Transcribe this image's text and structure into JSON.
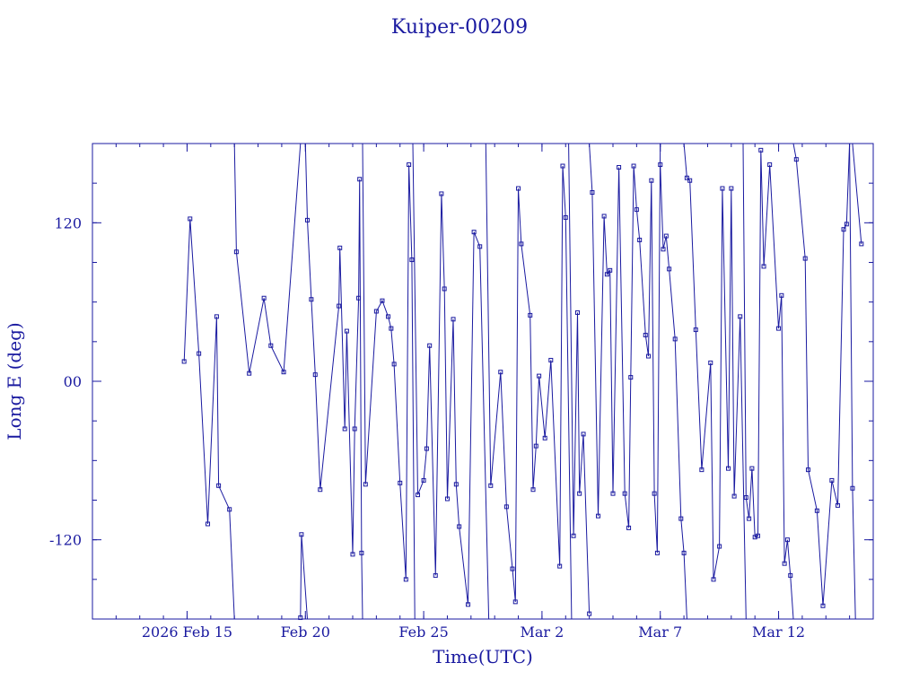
{
  "chart_data": {
    "type": "line",
    "title": "Kuiper-00209",
    "xlabel": "Time(UTC)",
    "ylabel": "Long E (deg)",
    "x_range": [
      "2026-02-11",
      "2026-03-16"
    ],
    "ylim": [
      -180,
      180
    ],
    "x_ticks": [
      {
        "date": "2026-02-15",
        "label": "2026 Feb 15"
      },
      {
        "date": "2026-02-20",
        "label": "Feb 20"
      },
      {
        "date": "2026-02-25",
        "label": "Feb 25"
      },
      {
        "date": "2026-03-02",
        "label": "Mar  2"
      },
      {
        "date": "2026-03-07",
        "label": "Mar  7"
      },
      {
        "date": "2026-03-12",
        "label": "Mar 12"
      }
    ],
    "y_ticks": [
      {
        "value": 120,
        "label": "120"
      },
      {
        "value": 0,
        "label": "00"
      },
      {
        "value": -120,
        "label": "-120"
      }
    ],
    "grid": false,
    "color": "#1a1aa0",
    "series": [
      {
        "points": [
          [
            "2026-02-14T21:00",
            15
          ],
          [
            "2026-02-15T03:00",
            123
          ],
          [
            "2026-02-15T12:00",
            21
          ],
          [
            "2026-02-15T21:00",
            -108
          ],
          [
            "2026-02-16T06:00",
            49
          ],
          [
            "2026-02-16T08:00",
            -79
          ],
          [
            "2026-02-16T19:00",
            -97
          ],
          [
            "2026-02-17T00:00",
            -180
          ],
          null,
          [
            "2026-02-17T00:00",
            180
          ],
          [
            "2026-02-17T02:00",
            98
          ],
          [
            "2026-02-17T15:00",
            6
          ],
          [
            "2026-02-18T06:00",
            63
          ],
          [
            "2026-02-18T13:00",
            27
          ],
          [
            "2026-02-19T02:00",
            7
          ],
          [
            "2026-02-19T19:00",
            180
          ],
          null,
          [
            "2026-02-19T19:00",
            -179
          ],
          [
            "2026-02-19T20:00",
            -116
          ],
          [
            "2026-02-20T02:00",
            -180
          ],
          null,
          [
            "2026-02-20T00:00",
            180
          ],
          [
            "2026-02-20T02:00",
            122
          ],
          [
            "2026-02-20T06:00",
            62
          ],
          [
            "2026-02-20T10:00",
            5
          ],
          [
            "2026-02-20T15:00",
            -82
          ],
          [
            "2026-02-21T10:00",
            57
          ],
          [
            "2026-02-21T11:00",
            101
          ],
          [
            "2026-02-21T16:00",
            -36
          ],
          [
            "2026-02-21T18:00",
            38
          ],
          [
            "2026-02-22T00:00",
            -131
          ],
          [
            "2026-02-22T02:00",
            -36
          ],
          [
            "2026-02-22T06:00",
            63
          ],
          [
            "2026-02-22T07:00",
            153
          ],
          [
            "2026-02-22T09:00",
            -130
          ],
          [
            "2026-02-22T10:00",
            -180
          ],
          null,
          [
            "2026-02-22T10:00",
            180
          ],
          [
            "2026-02-22T13:00",
            -78
          ],
          [
            "2026-02-23T00:00",
            53
          ],
          [
            "2026-02-23T06:00",
            61
          ],
          [
            "2026-02-23T12:00",
            49
          ],
          [
            "2026-02-23T15:00",
            40
          ],
          [
            "2026-02-23T18:00",
            13
          ],
          [
            "2026-02-24T00:00",
            -77
          ],
          [
            "2026-02-24T06:00",
            -150
          ],
          [
            "2026-02-24T09:00",
            164
          ],
          [
            "2026-02-24T12:00",
            92
          ],
          [
            "2026-02-24T15:00",
            -180
          ],
          null,
          [
            "2026-02-24T13:00",
            180
          ],
          [
            "2026-02-24T18:00",
            -86
          ],
          [
            "2026-02-25T00:00",
            -75
          ],
          [
            "2026-02-25T03:00",
            -51
          ],
          [
            "2026-02-25T06:00",
            27
          ],
          [
            "2026-02-25T12:00",
            -147
          ],
          [
            "2026-02-25T18:00",
            142
          ],
          [
            "2026-02-25T21:00",
            70
          ],
          [
            "2026-02-26T00:00",
            -89
          ],
          [
            "2026-02-26T06:00",
            47
          ],
          [
            "2026-02-26T09:00",
            -78
          ],
          [
            "2026-02-26T12:00",
            -110
          ],
          [
            "2026-02-26T21:00",
            -169
          ],
          [
            "2026-02-27T03:00",
            113
          ],
          [
            "2026-02-27T09:00",
            102
          ],
          [
            "2026-02-27T18:00",
            -180
          ],
          null,
          [
            "2026-02-27T15:00",
            180
          ],
          [
            "2026-02-27T20:00",
            -79
          ],
          [
            "2026-02-28T06:00",
            7
          ],
          [
            "2026-02-28T12:00",
            -95
          ],
          [
            "2026-02-28T18:00",
            -142
          ],
          [
            "2026-02-28T21:00",
            -167
          ],
          [
            "2026-03-01T00:00",
            146
          ],
          [
            "2026-03-01T03:00",
            104
          ],
          [
            "2026-03-01T12:00",
            50
          ],
          [
            "2026-03-01T15:00",
            -82
          ],
          [
            "2026-03-01T18:00",
            -49
          ],
          [
            "2026-03-01T21:00",
            4
          ],
          [
            "2026-03-02T03:00",
            -43
          ],
          [
            "2026-03-02T09:00",
            16
          ],
          [
            "2026-03-02T18:00",
            -140
          ],
          [
            "2026-03-02T21:00",
            163
          ],
          [
            "2026-03-03T00:00",
            124
          ],
          [
            "2026-03-03T06:00",
            -180
          ],
          null,
          [
            "2026-03-03T03:00",
            180
          ],
          [
            "2026-03-03T08:00",
            -117
          ],
          [
            "2026-03-03T12:00",
            52
          ],
          [
            "2026-03-03T14:00",
            -85
          ],
          [
            "2026-03-03T18:00",
            -40
          ],
          [
            "2026-03-04T00:00",
            -176
          ],
          null,
          [
            "2026-03-04T00:00",
            180
          ],
          [
            "2026-03-04T03:00",
            143
          ],
          [
            "2026-03-04T09:00",
            -102
          ],
          [
            "2026-03-04T15:00",
            125
          ],
          [
            "2026-03-04T18:00",
            81
          ],
          [
            "2026-03-04T21:00",
            84
          ],
          [
            "2026-03-05T00:00",
            -85
          ],
          [
            "2026-03-05T06:00",
            162
          ],
          [
            "2026-03-05T12:00",
            -85
          ],
          [
            "2026-03-05T16:00",
            -111
          ],
          [
            "2026-03-05T18:00",
            3
          ],
          [
            "2026-03-05T21:00",
            163
          ],
          [
            "2026-03-06T00:00",
            130
          ],
          [
            "2026-03-06T03:00",
            107
          ],
          [
            "2026-03-06T09:00",
            35
          ],
          [
            "2026-03-06T12:00",
            19
          ],
          [
            "2026-03-06T15:00",
            152
          ],
          [
            "2026-03-06T18:00",
            -85
          ],
          [
            "2026-03-06T21:00",
            -130
          ],
          [
            "2026-03-07T00:00",
            180
          ],
          null,
          [
            "2026-03-07T00:00",
            164
          ],
          [
            "2026-03-07T03:00",
            100
          ],
          [
            "2026-03-07T06:00",
            110
          ],
          [
            "2026-03-07T09:00",
            85
          ],
          [
            "2026-03-07T15:00",
            32
          ],
          [
            "2026-03-07T21:00",
            -104
          ],
          [
            "2026-03-08T00:00",
            -130
          ],
          [
            "2026-03-08T03:00",
            -180
          ],
          null,
          [
            "2026-03-08T00:00",
            180
          ],
          [
            "2026-03-08T03:00",
            154
          ],
          [
            "2026-03-08T06:00",
            152
          ],
          [
            "2026-03-08T12:00",
            39
          ],
          [
            "2026-03-08T18:00",
            -67
          ],
          [
            "2026-03-09T03:00",
            14
          ],
          [
            "2026-03-09T06:00",
            -150
          ],
          [
            "2026-03-09T12:00",
            -125
          ],
          [
            "2026-03-09T15:00",
            146
          ],
          [
            "2026-03-09T21:00",
            -66
          ],
          [
            "2026-03-10T00:00",
            146
          ],
          [
            "2026-03-10T03:00",
            -87
          ],
          [
            "2026-03-10T09:00",
            49
          ],
          [
            "2026-03-10T15:00",
            -180
          ],
          null,
          [
            "2026-03-10T12:00",
            180
          ],
          [
            "2026-03-10T15:00",
            -88
          ],
          [
            "2026-03-10T18:00",
            -104
          ],
          [
            "2026-03-10T21:00",
            -66
          ],
          [
            "2026-03-11T00:00",
            -118
          ],
          [
            "2026-03-11T03:00",
            -117
          ],
          [
            "2026-03-11T06:00",
            175
          ],
          [
            "2026-03-11T09:00",
            87
          ],
          [
            "2026-03-11T15:00",
            164
          ],
          [
            "2026-03-12T00:00",
            40
          ],
          [
            "2026-03-12T03:00",
            65
          ],
          [
            "2026-03-12T06:00",
            -138
          ],
          [
            "2026-03-12T09:00",
            -120
          ],
          [
            "2026-03-12T12:00",
            -147
          ],
          [
            "2026-03-12T15:00",
            -180
          ],
          null,
          [
            "2026-03-12T15:00",
            180
          ],
          [
            "2026-03-12T18:00",
            168
          ],
          [
            "2026-03-13T03:00",
            93
          ],
          [
            "2026-03-13T06:00",
            -67
          ],
          [
            "2026-03-13T15:00",
            -98
          ],
          [
            "2026-03-13T21:00",
            -170
          ],
          [
            "2026-03-14T06:00",
            -75
          ],
          [
            "2026-03-14T12:00",
            -94
          ],
          [
            "2026-03-14T18:00",
            115
          ],
          [
            "2026-03-14T21:00",
            119
          ],
          [
            "2026-03-15T00:00",
            180
          ],
          null,
          [
            "2026-03-15T00:00",
            180
          ],
          [
            "2026-03-15T03:00",
            -81
          ],
          [
            "2026-03-15T06:00",
            -180
          ],
          null,
          [
            "2026-03-15T03:00",
            180
          ],
          [
            "2026-03-15T12:00",
            104
          ]
        ]
      }
    ]
  }
}
